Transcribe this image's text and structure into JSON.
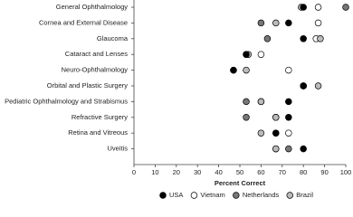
{
  "chart_data": {
    "type": "dot",
    "categories": [
      "General Ophthalmology",
      "Cornea and External Disease",
      "Glaucoma",
      "Cataract and Lenses",
      "Neuro-Ophthalmology",
      "Orbital and Plastic Surgery",
      "Pediatric Ophthalmology and Strabismus",
      "Refractive Surgery",
      "Retina and Vitreous",
      "Uveitis"
    ],
    "series": [
      {
        "name": "Vietnam",
        "color": "#ffffff",
        "values": [
          87,
          87,
          86,
          60,
          73,
          80,
          60,
          67,
          73,
          67
        ]
      },
      {
        "name": "Netherlands",
        "color": "#777777",
        "values": [
          100,
          60,
          63,
          53,
          47,
          80,
          53,
          53,
          67,
          73
        ]
      },
      {
        "name": "Brazil",
        "color": "#bbbbbb",
        "values": [
          79,
          67,
          88,
          54,
          53,
          87,
          60,
          67,
          60,
          67
        ]
      },
      {
        "name": "USA",
        "color": "#000000",
        "values": [
          80,
          73,
          80,
          53,
          47,
          80,
          73,
          73,
          67,
          80
        ]
      }
    ],
    "legend_order": [
      3,
      0,
      1,
      2
    ],
    "xlabel": "Percent Correct",
    "xlim": [
      0,
      100
    ],
    "xticks": [
      0,
      10,
      20,
      30,
      40,
      50,
      60,
      70,
      80,
      90,
      100
    ]
  }
}
